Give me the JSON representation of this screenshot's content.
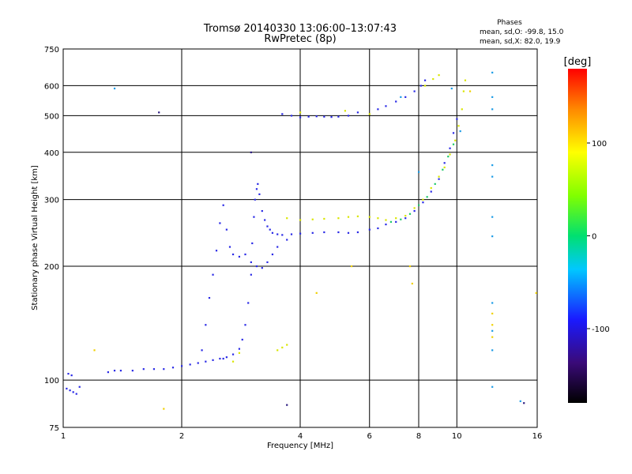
{
  "chart_data": {
    "type": "scatter",
    "title": "Tromsø 20140330 13:06:00–13:07:43",
    "subtitle": "RwPretec (8p)",
    "xlabel": "Frequency [MHz]",
    "ylabel": "Stationary phase Virtual Height [km]",
    "x_scale": "log",
    "y_scale": "log",
    "xlim": [
      1,
      16
    ],
    "ylim": [
      75,
      750
    ],
    "x_ticks": [
      1,
      2,
      4,
      6,
      8,
      10,
      16
    ],
    "y_ticks": [
      75,
      100,
      200,
      300,
      400,
      500,
      600,
      750
    ],
    "grid": true,
    "stats": {
      "heading": "Phases",
      "o_line": "mean, sd,O: -99.8, 15.0",
      "x_line": "mean, sd,X:  82.0, 19.9"
    },
    "colorbar": {
      "unit_label": "[deg]",
      "range": [
        -180,
        180
      ],
      "ticks": [
        100,
        0,
        -100
      ],
      "colormap": "rainbow: black → purple → blue → cyan → green → yellow → orange → red"
    },
    "series": [
      {
        "phase_deg": -120,
        "color": "#2a2ae6",
        "points": [
          [
            1.02,
            95
          ],
          [
            1.04,
            94
          ],
          [
            1.06,
            93
          ],
          [
            1.08,
            92
          ],
          [
            1.1,
            96
          ],
          [
            1.03,
            104
          ],
          [
            1.05,
            103
          ],
          [
            1.3,
            105
          ],
          [
            1.35,
            106
          ],
          [
            1.4,
            106
          ],
          [
            1.5,
            106
          ],
          [
            1.6,
            107
          ],
          [
            1.7,
            107
          ],
          [
            1.8,
            107
          ],
          [
            1.9,
            108
          ],
          [
            2.0,
            109
          ],
          [
            2.1,
            110
          ],
          [
            2.2,
            111
          ],
          [
            2.3,
            112
          ],
          [
            2.4,
            113
          ],
          [
            2.5,
            114
          ],
          [
            2.55,
            114
          ],
          [
            2.6,
            115
          ],
          [
            2.7,
            117
          ],
          [
            2.8,
            121
          ],
          [
            2.85,
            128
          ],
          [
            2.9,
            140
          ],
          [
            2.95,
            160
          ],
          [
            3.0,
            190
          ],
          [
            3.02,
            230
          ],
          [
            3.05,
            270
          ],
          [
            3.07,
            300
          ],
          [
            3.1,
            320
          ],
          [
            3.12,
            330
          ],
          [
            3.15,
            310
          ],
          [
            3.2,
            280
          ],
          [
            3.25,
            265
          ],
          [
            3.3,
            255
          ],
          [
            3.35,
            250
          ],
          [
            3.4,
            245
          ],
          [
            3.5,
            243
          ],
          [
            3.6,
            242
          ],
          [
            3.8,
            243
          ],
          [
            4.0,
            244
          ],
          [
            4.3,
            245
          ],
          [
            4.6,
            246
          ],
          [
            5.0,
            246
          ],
          [
            5.3,
            245
          ],
          [
            5.6,
            246
          ],
          [
            6.0,
            250
          ],
          [
            6.3,
            252
          ],
          [
            6.6,
            258
          ],
          [
            7.0,
            262
          ],
          [
            7.4,
            268
          ],
          [
            7.8,
            280
          ],
          [
            8.2,
            295
          ],
          [
            8.6,
            315
          ],
          [
            9.0,
            340
          ],
          [
            9.3,
            375
          ],
          [
            9.6,
            410
          ],
          [
            9.8,
            450
          ],
          [
            10.0,
            490
          ],
          [
            2.25,
            120
          ],
          [
            2.3,
            140
          ],
          [
            2.35,
            165
          ],
          [
            2.4,
            190
          ],
          [
            2.45,
            220
          ],
          [
            2.5,
            260
          ],
          [
            2.55,
            290
          ],
          [
            2.6,
            250
          ],
          [
            2.65,
            225
          ],
          [
            2.7,
            215
          ],
          [
            2.8,
            212
          ],
          [
            2.9,
            215
          ],
          [
            3.0,
            205
          ],
          [
            3.1,
            200
          ],
          [
            3.2,
            198
          ],
          [
            3.3,
            205
          ],
          [
            3.4,
            215
          ],
          [
            3.5,
            225
          ],
          [
            3.7,
            235
          ],
          [
            3.6,
            505
          ],
          [
            3.8,
            500
          ],
          [
            4.0,
            495
          ],
          [
            4.2,
            497
          ],
          [
            4.4,
            498
          ],
          [
            4.6,
            497
          ],
          [
            4.8,
            496
          ],
          [
            5.0,
            497
          ],
          [
            5.3,
            500
          ],
          [
            5.6,
            510
          ],
          [
            6.3,
            520
          ],
          [
            6.6,
            530
          ],
          [
            7.0,
            545
          ],
          [
            7.4,
            560
          ],
          [
            7.8,
            580
          ],
          [
            8.1,
            600
          ],
          [
            8.3,
            620
          ]
        ]
      },
      {
        "phase_deg": 80,
        "color": "#d9e600",
        "points": [
          [
            3.7,
            268
          ],
          [
            4.0,
            265
          ],
          [
            4.3,
            266
          ],
          [
            4.6,
            267
          ],
          [
            5.0,
            268
          ],
          [
            5.3,
            270
          ],
          [
            5.6,
            271
          ],
          [
            6.0,
            270
          ],
          [
            6.3,
            268
          ],
          [
            6.6,
            265
          ],
          [
            7.0,
            268
          ],
          [
            7.4,
            272
          ],
          [
            7.8,
            285
          ],
          [
            8.2,
            300
          ],
          [
            8.6,
            322
          ],
          [
            9.0,
            345
          ],
          [
            9.3,
            365
          ],
          [
            9.6,
            395
          ],
          [
            9.9,
            430
          ],
          [
            10.1,
            470
          ],
          [
            10.3,
            520
          ],
          [
            10.4,
            580
          ],
          [
            10.5,
            620
          ],
          [
            3.5,
            120
          ],
          [
            3.6,
            122
          ],
          [
            3.7,
            124
          ],
          [
            8.3,
            600
          ],
          [
            8.7,
            625
          ],
          [
            9.0,
            640
          ],
          [
            4.0,
            510
          ],
          [
            5.2,
            515
          ],
          [
            6.0,
            505
          ],
          [
            2.7,
            112
          ],
          [
            2.8,
            118
          ]
        ]
      },
      {
        "phase_deg": 0,
        "color": "#1fc86a",
        "points": [
          [
            6.8,
            262
          ],
          [
            7.2,
            266
          ],
          [
            7.6,
            275
          ],
          [
            8.0,
            290
          ],
          [
            8.4,
            305
          ],
          [
            8.8,
            330
          ],
          [
            9.2,
            360
          ],
          [
            9.5,
            390
          ],
          [
            9.8,
            420
          ]
        ]
      },
      {
        "phase_deg": -60,
        "color": "#1a9be6",
        "points": [
          [
            12.3,
            650
          ],
          [
            12.3,
            560
          ],
          [
            12.3,
            520
          ],
          [
            12.3,
            370
          ],
          [
            12.3,
            345
          ],
          [
            12.3,
            270
          ],
          [
            12.3,
            240
          ],
          [
            12.3,
            160
          ],
          [
            12.3,
            135
          ],
          [
            12.3,
            120
          ],
          [
            12.3,
            96
          ],
          [
            1.35,
            590
          ],
          [
            14.5,
            88
          ],
          [
            9.7,
            590
          ],
          [
            10.2,
            455
          ],
          [
            8.0,
            355
          ],
          [
            7.2,
            560
          ]
        ]
      },
      {
        "phase_deg": 100,
        "color": "#f0d000",
        "points": [
          [
            12.3,
            150
          ],
          [
            12.3,
            140
          ],
          [
            12.3,
            130
          ],
          [
            15.9,
            170
          ],
          [
            10.8,
            580
          ],
          [
            7.6,
            200
          ],
          [
            7.7,
            180
          ],
          [
            1.2,
            120
          ],
          [
            1.8,
            84
          ],
          [
            4.4,
            170
          ],
          [
            5.4,
            200
          ]
        ]
      },
      {
        "phase_deg": -160,
        "color": "#2a1a80",
        "points": [
          [
            3.7,
            86
          ],
          [
            1.75,
            510
          ],
          [
            3.0,
            400
          ],
          [
            14.8,
            87
          ]
        ]
      }
    ]
  }
}
